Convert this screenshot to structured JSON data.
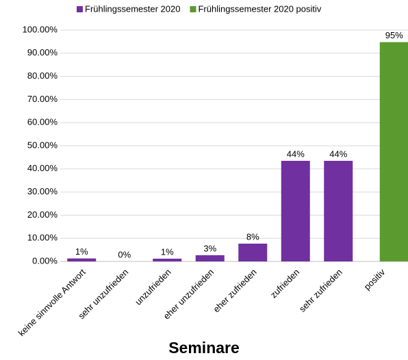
{
  "chart_data": {
    "type": "bar",
    "x_label": "Seminare",
    "categories": [
      "keine sinnvolle Antwort",
      "sehr unzufrieden",
      "unzufrieden",
      "eher unzufrieden",
      "eher zufrieden",
      "zufrieden",
      "sehr zufrieden",
      "positiv"
    ],
    "series": [
      {
        "name": "Frühlingssemester 2020",
        "color": "#7030a0",
        "values": [
          1.3,
          0,
          1.2,
          2.7,
          7.7,
          43.5,
          43.5,
          null
        ],
        "value_labels": [
          "1%",
          "0%",
          "1%",
          "3%",
          "8%",
          "44%",
          "44%",
          null
        ]
      },
      {
        "name": "Frühlingssemester 2020 positiv",
        "color": "#5b9a2f",
        "values": [
          null,
          null,
          null,
          null,
          null,
          null,
          null,
          94.8
        ],
        "value_labels": [
          null,
          null,
          null,
          null,
          null,
          null,
          null,
          "95%"
        ]
      }
    ],
    "ylim": [
      0,
      100
    ],
    "yticks": [
      {
        "value": 0,
        "label": "0.00%"
      },
      {
        "value": 10,
        "label": "10.00%"
      },
      {
        "value": 20,
        "label": "20.00%"
      },
      {
        "value": 30,
        "label": "30.00%"
      },
      {
        "value": 40,
        "label": "40.00%"
      },
      {
        "value": 50,
        "label": "50.00%"
      },
      {
        "value": 60,
        "label": "60.00%"
      },
      {
        "value": 70,
        "label": "70.00%"
      },
      {
        "value": 80,
        "label": "80.00%"
      },
      {
        "value": 90,
        "label": "90.00%"
      },
      {
        "value": 100,
        "label": "100.00%"
      }
    ],
    "grid": true,
    "legend": "top"
  }
}
